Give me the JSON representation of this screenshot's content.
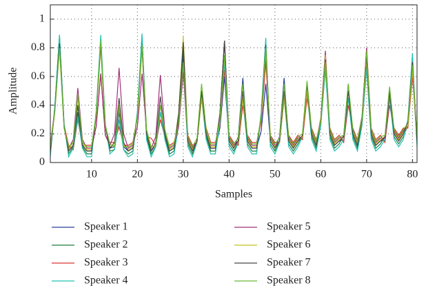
{
  "chart_data": {
    "type": "line",
    "xlabel": "Samples",
    "ylabel": "Amplitude",
    "x": [
      1,
      2,
      3,
      4,
      5,
      6,
      7,
      8,
      9,
      10,
      11,
      12,
      13,
      14,
      15,
      16,
      17,
      18,
      19,
      20,
      21,
      22,
      23,
      24,
      25,
      26,
      27,
      28,
      29,
      30,
      31,
      32,
      33,
      34,
      35,
      36,
      37,
      38,
      39,
      40,
      41,
      42,
      43,
      44,
      45,
      46,
      47,
      48,
      49,
      50,
      51,
      52,
      53,
      54,
      55,
      56,
      57,
      58,
      59,
      60,
      61,
      62,
      63,
      64,
      65,
      66,
      67,
      68,
      69,
      70,
      71,
      72,
      73,
      74,
      75,
      76,
      77,
      78,
      79,
      80,
      81
    ],
    "xlim": [
      1,
      81
    ],
    "xticks": [
      10,
      20,
      30,
      40,
      50,
      60,
      70,
      80
    ],
    "ylim": [
      0,
      1.1
    ],
    "yticks": [
      0,
      0.2,
      0.4,
      0.6,
      0.8,
      1
    ],
    "grid": true,
    "series": [
      {
        "name": "Speaker 1",
        "color": "#2b3a9e",
        "values": [
          0.08,
          0.38,
          0.85,
          0.26,
          0.08,
          0.12,
          0.4,
          0.12,
          0.08,
          0.08,
          0.34,
          0.85,
          0.26,
          0.1,
          0.11,
          0.35,
          0.11,
          0.08,
          0.1,
          0.35,
          0.88,
          0.2,
          0.08,
          0.12,
          0.4,
          0.2,
          0.08,
          0.1,
          0.3,
          0.75,
          0.15,
          0.08,
          0.15,
          0.5,
          0.2,
          0.1,
          0.1,
          0.24,
          0.6,
          0.15,
          0.1,
          0.18,
          0.59,
          0.15,
          0.1,
          0.1,
          0.22,
          0.55,
          0.15,
          0.1,
          0.18,
          0.59,
          0.15,
          0.1,
          0.15,
          0.18,
          0.5,
          0.2,
          0.12,
          0.28,
          0.7,
          0.2,
          0.12,
          0.15,
          0.16,
          0.45,
          0.2,
          0.12,
          0.3,
          0.75,
          0.2,
          0.12,
          0.15,
          0.16,
          0.45,
          0.2,
          0.15,
          0.2,
          0.28,
          0.7,
          0.15
        ]
      },
      {
        "name": "Speaker 2",
        "color": "#1a7a3a",
        "values": [
          0.06,
          0.4,
          0.89,
          0.27,
          0.06,
          0.11,
          0.35,
          0.11,
          0.06,
          0.06,
          0.34,
          0.85,
          0.26,
          0.08,
          0.09,
          0.3,
          0.09,
          0.06,
          0.08,
          0.34,
          0.85,
          0.18,
          0.06,
          0.11,
          0.35,
          0.18,
          0.06,
          0.08,
          0.32,
          0.8,
          0.13,
          0.06,
          0.15,
          0.5,
          0.18,
          0.08,
          0.08,
          0.34,
          0.85,
          0.13,
          0.08,
          0.14,
          0.45,
          0.13,
          0.08,
          0.08,
          0.32,
          0.8,
          0.13,
          0.08,
          0.15,
          0.5,
          0.13,
          0.08,
          0.13,
          0.19,
          0.55,
          0.18,
          0.1,
          0.28,
          0.7,
          0.18,
          0.1,
          0.13,
          0.19,
          0.55,
          0.18,
          0.1,
          0.28,
          0.7,
          0.18,
          0.1,
          0.13,
          0.18,
          0.5,
          0.18,
          0.13,
          0.18,
          0.26,
          0.65,
          0.13
        ]
      },
      {
        "name": "Speaker 3",
        "color": "#d93030",
        "values": [
          0.12,
          0.38,
          0.85,
          0.26,
          0.12,
          0.09,
          0.3,
          0.12,
          0.12,
          0.12,
          0.25,
          0.62,
          0.19,
          0.14,
          0.14,
          0.25,
          0.12,
          0.12,
          0.14,
          0.32,
          0.8,
          0.18,
          0.17,
          0.12,
          0.3,
          0.18,
          0.12,
          0.14,
          0.28,
          0.7,
          0.19,
          0.12,
          0.14,
          0.45,
          0.24,
          0.14,
          0.14,
          0.26,
          0.65,
          0.19,
          0.14,
          0.12,
          0.4,
          0.19,
          0.14,
          0.14,
          0.28,
          0.7,
          0.19,
          0.14,
          0.14,
          0.45,
          0.19,
          0.14,
          0.19,
          0.16,
          0.45,
          0.24,
          0.16,
          0.26,
          0.65,
          0.24,
          0.16,
          0.19,
          0.14,
          0.4,
          0.24,
          0.16,
          0.32,
          0.8,
          0.24,
          0.16,
          0.19,
          0.14,
          0.4,
          0.24,
          0.19,
          0.24,
          0.24,
          0.6,
          0.19
        ]
      },
      {
        "name": "Speaker 4",
        "color": "#20c0b0",
        "values": [
          0.04,
          0.4,
          0.89,
          0.27,
          0.04,
          0.1,
          0.32,
          0.1,
          0.04,
          0.04,
          0.36,
          0.89,
          0.27,
          0.06,
          0.09,
          0.3,
          0.09,
          0.04,
          0.06,
          0.36,
          0.9,
          0.16,
          0.04,
          0.11,
          0.35,
          0.16,
          0.04,
          0.06,
          0.26,
          0.65,
          0.11,
          0.04,
          0.14,
          0.45,
          0.16,
          0.06,
          0.06,
          0.28,
          0.7,
          0.11,
          0.06,
          0.14,
          0.45,
          0.11,
          0.06,
          0.06,
          0.35,
          0.87,
          0.11,
          0.06,
          0.14,
          0.45,
          0.11,
          0.06,
          0.11,
          0.18,
          0.5,
          0.16,
          0.08,
          0.26,
          0.65,
          0.16,
          0.08,
          0.11,
          0.16,
          0.45,
          0.16,
          0.08,
          0.26,
          0.65,
          0.16,
          0.08,
          0.11,
          0.16,
          0.45,
          0.16,
          0.11,
          0.16,
          0.3,
          0.76,
          0.11
        ]
      },
      {
        "name": "Speaker 5",
        "color": "#a0307a",
        "values": [
          0.1,
          0.37,
          0.82,
          0.25,
          0.1,
          0.16,
          0.52,
          0.16,
          0.1,
          0.1,
          0.25,
          0.62,
          0.19,
          0.12,
          0.2,
          0.66,
          0.2,
          0.1,
          0.12,
          0.25,
          0.62,
          0.22,
          0.1,
          0.18,
          0.61,
          0.22,
          0.1,
          0.12,
          0.25,
          0.63,
          0.17,
          0.1,
          0.15,
          0.5,
          0.22,
          0.12,
          0.12,
          0.34,
          0.85,
          0.17,
          0.12,
          0.15,
          0.5,
          0.17,
          0.12,
          0.12,
          0.3,
          0.75,
          0.17,
          0.12,
          0.14,
          0.45,
          0.17,
          0.12,
          0.17,
          0.18,
          0.5,
          0.22,
          0.14,
          0.31,
          0.78,
          0.22,
          0.14,
          0.17,
          0.18,
          0.5,
          0.22,
          0.14,
          0.32,
          0.8,
          0.22,
          0.14,
          0.17,
          0.17,
          0.48,
          0.22,
          0.17,
          0.22,
          0.28,
          0.7,
          0.17
        ]
      },
      {
        "name": "Speaker 6",
        "color": "#c8c020",
        "values": [
          0.09,
          0.36,
          0.8,
          0.24,
          0.09,
          0.14,
          0.45,
          0.14,
          0.09,
          0.09,
          0.32,
          0.8,
          0.24,
          0.11,
          0.12,
          0.4,
          0.12,
          0.09,
          0.11,
          0.32,
          0.8,
          0.21,
          0.09,
          0.12,
          0.4,
          0.21,
          0.09,
          0.11,
          0.35,
          0.88,
          0.16,
          0.09,
          0.14,
          0.45,
          0.21,
          0.11,
          0.11,
          0.3,
          0.75,
          0.16,
          0.11,
          0.14,
          0.45,
          0.16,
          0.11,
          0.11,
          0.31,
          0.78,
          0.16,
          0.11,
          0.14,
          0.45,
          0.16,
          0.11,
          0.16,
          0.18,
          0.5,
          0.21,
          0.13,
          0.3,
          0.75,
          0.21,
          0.13,
          0.16,
          0.18,
          0.5,
          0.21,
          0.13,
          0.29,
          0.72,
          0.21,
          0.13,
          0.16,
          0.18,
          0.5,
          0.21,
          0.16,
          0.21,
          0.26,
          0.65,
          0.16
        ]
      },
      {
        "name": "Speaker 7",
        "color": "#444444",
        "values": [
          0.08,
          0.37,
          0.83,
          0.25,
          0.08,
          0.12,
          0.4,
          0.12,
          0.08,
          0.08,
          0.33,
          0.83,
          0.25,
          0.1,
          0.14,
          0.45,
          0.14,
          0.08,
          0.1,
          0.33,
          0.82,
          0.2,
          0.08,
          0.14,
          0.46,
          0.2,
          0.08,
          0.1,
          0.34,
          0.84,
          0.15,
          0.08,
          0.15,
          0.5,
          0.2,
          0.1,
          0.1,
          0.34,
          0.85,
          0.15,
          0.1,
          0.15,
          0.5,
          0.15,
          0.1,
          0.1,
          0.33,
          0.82,
          0.15,
          0.1,
          0.15,
          0.5,
          0.15,
          0.1,
          0.15,
          0.19,
          0.55,
          0.2,
          0.12,
          0.29,
          0.72,
          0.2,
          0.12,
          0.15,
          0.18,
          0.5,
          0.2,
          0.12,
          0.3,
          0.75,
          0.2,
          0.12,
          0.15,
          0.18,
          0.5,
          0.2,
          0.15,
          0.2,
          0.28,
          0.7,
          0.15
        ]
      },
      {
        "name": "Speaker 8",
        "color": "#6ab830",
        "values": [
          0.11,
          0.36,
          0.8,
          0.24,
          0.11,
          0.14,
          0.48,
          0.14,
          0.11,
          0.11,
          0.34,
          0.85,
          0.26,
          0.13,
          0.11,
          0.38,
          0.11,
          0.11,
          0.13,
          0.33,
          0.82,
          0.23,
          0.11,
          0.12,
          0.4,
          0.23,
          0.11,
          0.13,
          0.28,
          0.7,
          0.18,
          0.11,
          0.17,
          0.55,
          0.23,
          0.13,
          0.13,
          0.3,
          0.75,
          0.18,
          0.13,
          0.17,
          0.55,
          0.18,
          0.13,
          0.13,
          0.32,
          0.8,
          0.18,
          0.13,
          0.17,
          0.55,
          0.18,
          0.13,
          0.18,
          0.2,
          0.57,
          0.23,
          0.15,
          0.28,
          0.7,
          0.23,
          0.15,
          0.18,
          0.19,
          0.55,
          0.23,
          0.15,
          0.31,
          0.78,
          0.23,
          0.15,
          0.18,
          0.19,
          0.53,
          0.23,
          0.18,
          0.23,
          0.27,
          0.68,
          0.18
        ]
      }
    ]
  }
}
